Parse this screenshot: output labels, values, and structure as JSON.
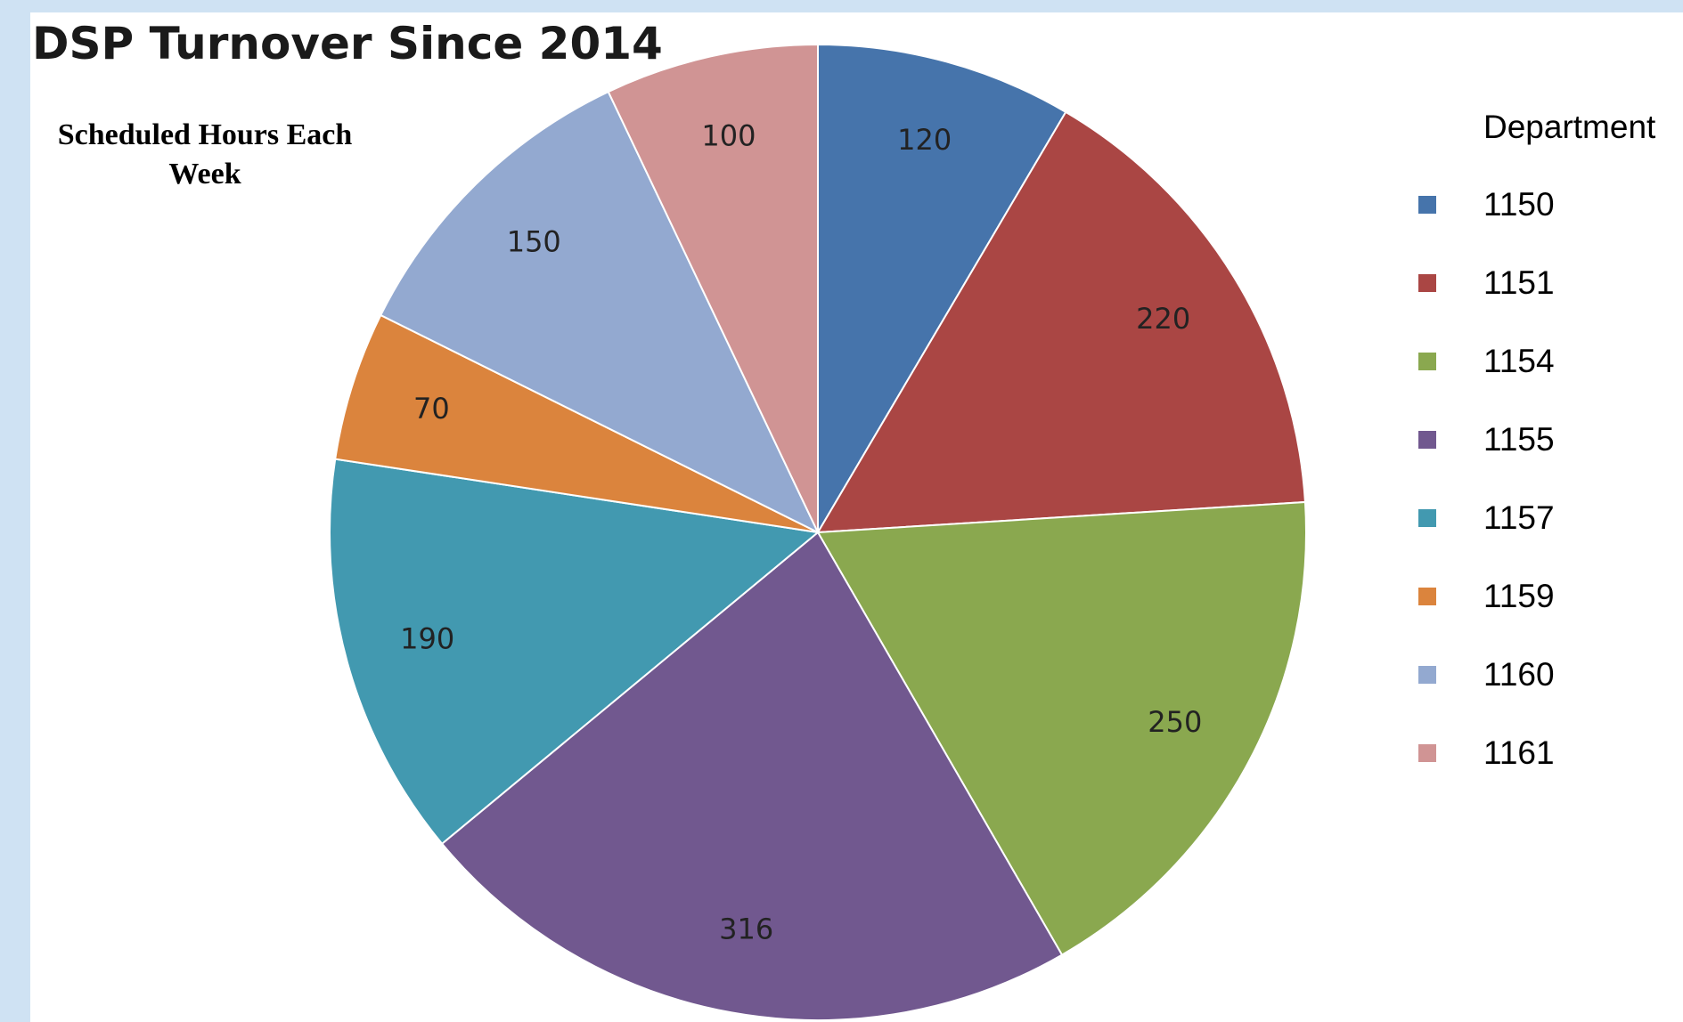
{
  "chart_data": {
    "type": "pie",
    "title": "DSP Turnover Since 2014",
    "subtitle": "Scheduled Hours Each Week",
    "legend_title": "Department",
    "legend_position": "right",
    "categories": [
      "1150",
      "1151",
      "1154",
      "1155",
      "1157",
      "1159",
      "1160",
      "1161"
    ],
    "values": [
      120,
      220,
      250,
      316,
      190,
      70,
      150,
      100
    ],
    "colors": [
      "#4674ab",
      "#aa4644",
      "#8aa84f",
      "#71588f",
      "#4299b0",
      "#db843d",
      "#93a9d0",
      "#d09494"
    ],
    "data_labels": [
      "120",
      "220",
      "250",
      "316",
      "190",
      "70",
      "150",
      "100"
    ]
  }
}
